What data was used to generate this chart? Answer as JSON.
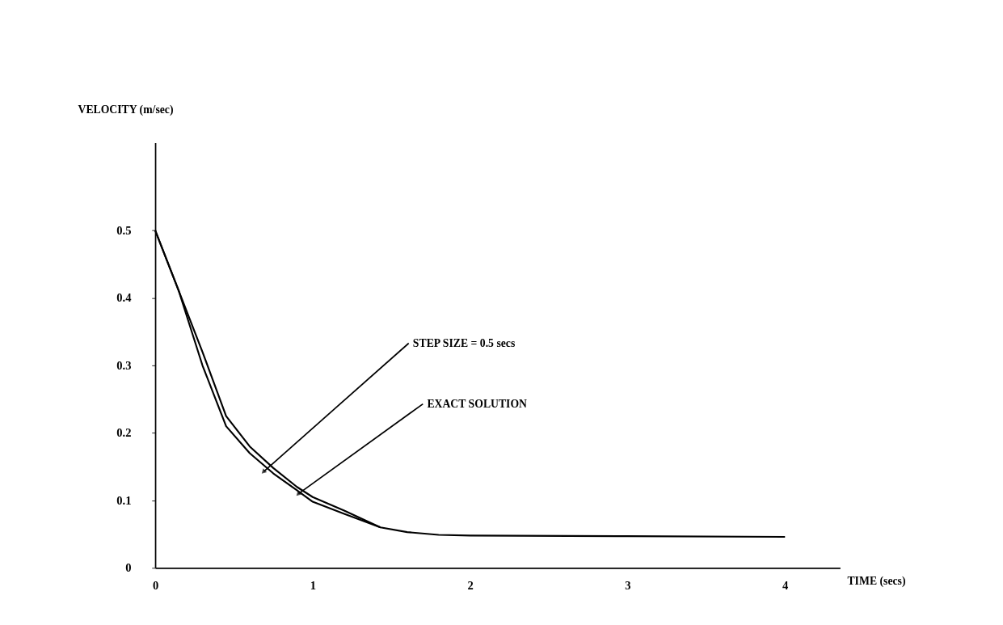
{
  "chart_data": {
    "type": "line",
    "xlabel": "TIME (secs)",
    "ylabel": "VELOCITY (m/sec)",
    "xlim": [
      0,
      4.35
    ],
    "ylim": [
      0,
      0.63
    ],
    "xticks": [
      0,
      1,
      2,
      3,
      4
    ],
    "yticks": [
      0,
      0.1,
      0.2,
      0.3,
      0.4,
      0.5
    ],
    "grid": false,
    "marker": "none",
    "line_style": "solid",
    "series": [
      {
        "color": "#000000",
        "x": [
          0,
          0.15,
          0.3,
          0.45,
          0.6,
          0.75,
          0.9,
          1.0,
          1.2,
          1.43,
          1.6,
          1.8,
          2,
          3,
          4
        ],
        "values": [
          0.5,
          0.41,
          0.3,
          0.21,
          0.17,
          0.14,
          0.115,
          0.098,
          0.08,
          0.06,
          0.053,
          0.049,
          0.048,
          0.047,
          0.046
        ]
      },
      {
        "color": "#000000",
        "x": [
          0,
          0.15,
          0.3,
          0.45,
          0.6,
          0.75,
          0.9,
          1.0,
          1.2,
          1.43
        ],
        "values": [
          0.5,
          0.41,
          0.32,
          0.225,
          0.18,
          0.148,
          0.12,
          0.105,
          0.085,
          0.06
        ]
      }
    ],
    "annotations": [
      {
        "text": "STEP SIZE = 0.5 secs",
        "x": 0.69,
        "y": 0.143
      },
      {
        "text": "EXACT SOLUTION",
        "x": 0.91,
        "y": 0.11
      }
    ]
  }
}
